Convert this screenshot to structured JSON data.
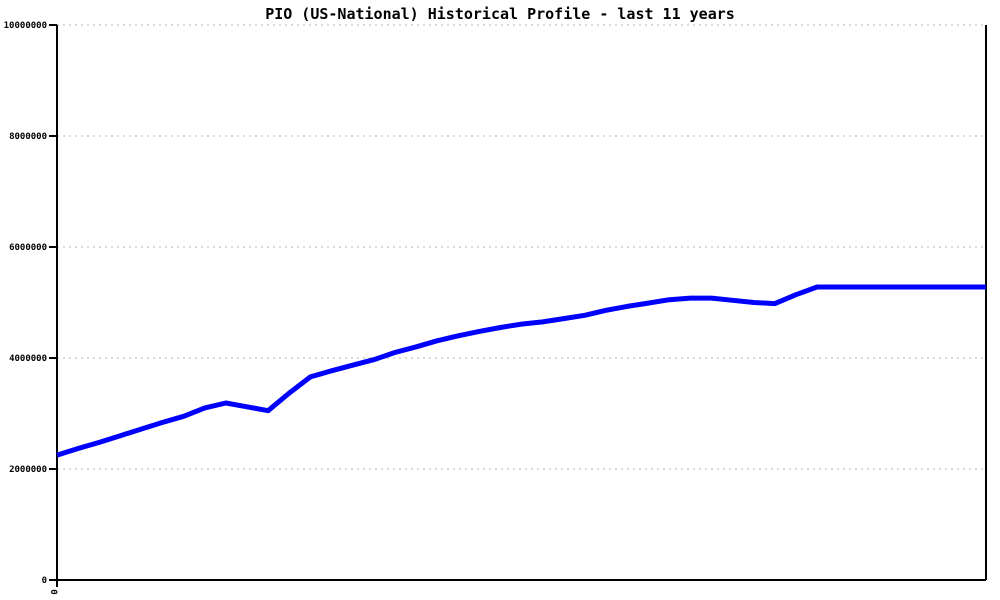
{
  "title": "PIO (US-National) Historical Profile - last 11 years",
  "chart_data": {
    "type": "line",
    "title": "PIO (US-National) Historical Profile - last 11 years",
    "xlabel": "",
    "ylabel": "",
    "ylim": [
      0,
      10000000
    ],
    "yticks": [
      0,
      2000000,
      4000000,
      6000000,
      8000000,
      10000000
    ],
    "ytick_labels": [
      "0",
      "2000000",
      "4000000",
      "6000000",
      "8000000",
      "10000000"
    ],
    "xtick_labels": [
      "0"
    ],
    "grid": "horizontal-dotted",
    "legend": "none",
    "x": [
      0,
      1,
      2,
      3,
      4,
      5,
      6,
      7,
      8,
      9,
      10,
      11,
      12,
      13,
      14,
      15,
      16,
      17,
      18,
      19,
      20,
      21,
      22,
      23,
      24,
      25,
      26,
      27,
      28,
      29,
      30,
      31,
      32,
      33,
      34,
      35,
      36,
      37,
      38,
      39,
      40,
      41,
      42,
      43,
      44
    ],
    "series": [
      {
        "name": "PIO (US-National)",
        "color": "#0000ff",
        "values": [
          2250000,
          2370000,
          2480000,
          2600000,
          2720000,
          2840000,
          2950000,
          3100000,
          3190000,
          3120000,
          3050000,
          3370000,
          3660000,
          3770000,
          3870000,
          3970000,
          4100000,
          4200000,
          4310000,
          4400000,
          4480000,
          4550000,
          4610000,
          4650000,
          4710000,
          4770000,
          4860000,
          4930000,
          4990000,
          5050000,
          5080000,
          5080000,
          5040000,
          5000000,
          4980000,
          5140000,
          5280000,
          5280000,
          5280000,
          5280000,
          5280000,
          5280000,
          5280000,
          5280000,
          5280000
        ]
      }
    ],
    "colors": {
      "line": "#0000ff",
      "grid": "#b3b3b3",
      "axis": "#000000",
      "background": "#ffffff"
    }
  }
}
